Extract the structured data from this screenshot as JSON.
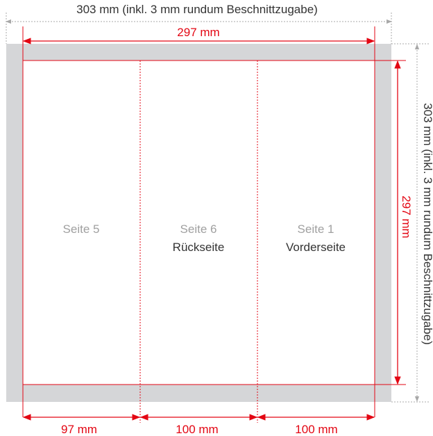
{
  "dimensions": {
    "top_total": "303 mm (inkl. 3 mm rundum Beschnittzugabe)",
    "top_trim": "297 mm",
    "side_total": "303 mm (inkl. 3 mm rundum Beschnittzugabe)",
    "side_trim": "297 mm",
    "panel_widths": [
      "97 mm",
      "100 mm",
      "100 mm"
    ]
  },
  "panels": [
    {
      "page": "Seite 5",
      "role": ""
    },
    {
      "page": "Seite 6",
      "role": "Rückseite"
    },
    {
      "page": "Seite 1",
      "role": "Vorderseite"
    }
  ],
  "colors": {
    "bleed": "#d5d6d8",
    "trim_red": "#e30613",
    "gray_dim": "#a8a8a8",
    "text_dark": "#333333",
    "text_light": "#a0a0a0"
  }
}
